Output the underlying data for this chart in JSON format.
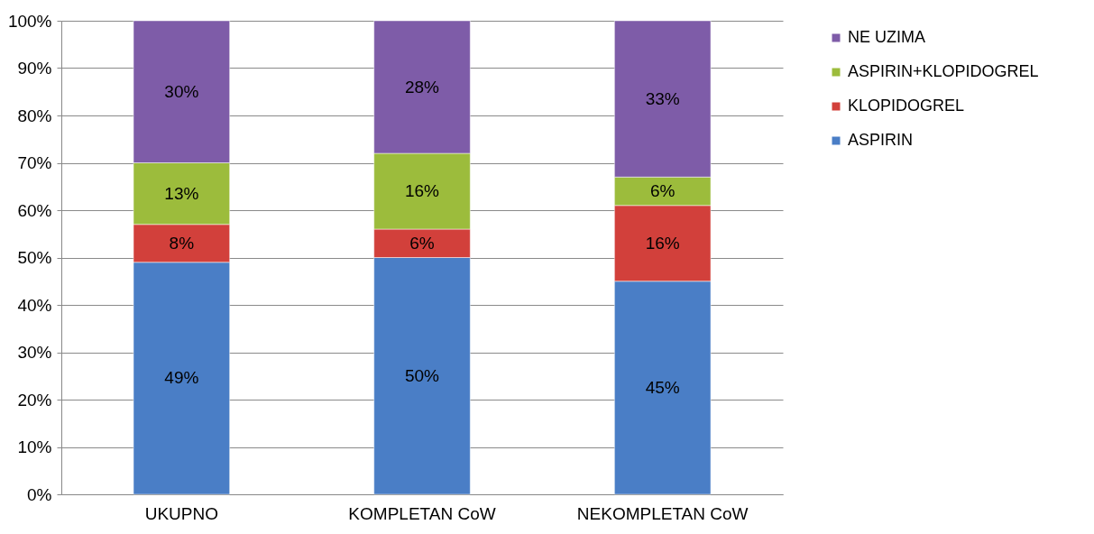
{
  "chart_data": {
    "type": "bar",
    "stacked": true,
    "categories": [
      "UKUPNO",
      "KOMPLETAN CoW",
      "NEKOMPLETAN CoW"
    ],
    "series": [
      {
        "name": "ASPIRIN",
        "color": "#4a7ec6",
        "values": [
          49,
          50,
          45
        ],
        "value_labels": [
          "49%",
          "50%",
          "45%"
        ]
      },
      {
        "name": "KLOPIDOGREL",
        "color": "#d2403b",
        "values": [
          8,
          6,
          16
        ],
        "value_labels": [
          "8%",
          "6%",
          "16%"
        ]
      },
      {
        "name": "ASPIRIN+KLOPIDOGREL",
        "color": "#9cbc3c",
        "values": [
          13,
          16,
          6
        ],
        "value_labels": [
          "13%",
          "16%",
          "6%"
        ]
      },
      {
        "name": "NE UZIMA",
        "color": "#7e5ca8",
        "values": [
          30,
          28,
          33
        ],
        "value_labels": [
          "30%",
          "28%",
          "33%"
        ]
      }
    ],
    "ylim": [
      0,
      100
    ],
    "yticks": [
      {
        "value": 0,
        "label": "0%"
      },
      {
        "value": 10,
        "label": "10%"
      },
      {
        "value": 20,
        "label": "20%"
      },
      {
        "value": 30,
        "label": "30%"
      },
      {
        "value": 40,
        "label": "40%"
      },
      {
        "value": 50,
        "label": "50%"
      },
      {
        "value": 60,
        "label": "60%"
      },
      {
        "value": 70,
        "label": "70%"
      },
      {
        "value": 80,
        "label": "80%"
      },
      {
        "value": 90,
        "label": "90%"
      },
      {
        "value": 100,
        "label": "100%"
      }
    ],
    "grid": "y",
    "legend": "right"
  }
}
